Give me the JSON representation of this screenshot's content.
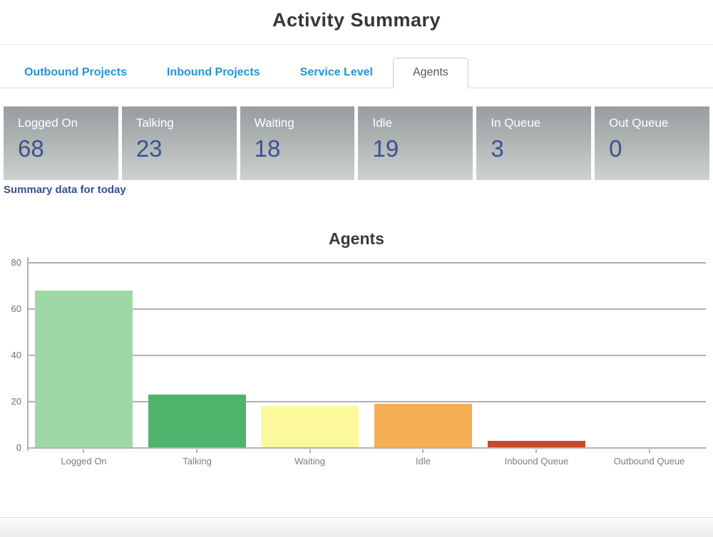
{
  "header": {
    "title": "Activity Summary"
  },
  "tabs": {
    "items": [
      {
        "label": "Outbound Projects",
        "active": false
      },
      {
        "label": "Inbound Projects",
        "active": false
      },
      {
        "label": "Service Level",
        "active": false
      },
      {
        "label": "Agents",
        "active": true
      }
    ]
  },
  "stats": {
    "cards": [
      {
        "label": "Logged On",
        "value": "68"
      },
      {
        "label": "Talking",
        "value": "23"
      },
      {
        "label": "Waiting",
        "value": "18"
      },
      {
        "label": "Idle",
        "value": "19"
      },
      {
        "label": "In Queue",
        "value": "3"
      },
      {
        "label": "Out Queue",
        "value": "0"
      }
    ],
    "summary_link": "Summary data for today"
  },
  "chart_data": {
    "type": "bar",
    "title": "Agents",
    "categories": [
      "Logged On",
      "Talking",
      "Waiting",
      "Idle",
      "Inbound Queue",
      "Outbound Queue"
    ],
    "values": [
      68,
      23,
      18,
      19,
      3,
      0
    ],
    "bar_colors": [
      "#9ed8a6",
      "#4fb46c",
      "#fbf99c",
      "#f5ae53",
      "#c64a2e",
      null
    ],
    "xlabel": "",
    "ylabel": "",
    "ylim": [
      0,
      80
    ],
    "yticks": [
      0,
      20,
      40,
      60,
      80
    ],
    "grid": true,
    "legend": false
  },
  "colors": {
    "tab_link": "#2196d2",
    "active_tab_text": "#555555",
    "stat_card_gradient_top": "#989da0",
    "stat_card_gradient_bottom": "#ced2d1",
    "stat_number": "#3a5291",
    "summary_link": "#34508f",
    "axis_gray": "#b1b1b1"
  }
}
